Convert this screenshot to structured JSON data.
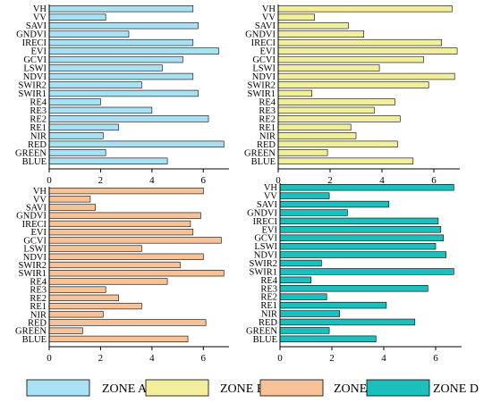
{
  "chart_data": [
    {
      "type": "bar",
      "orientation": "horizontal",
      "zone": "ZONE A",
      "color": "#a8e0f4",
      "categories": [
        "VH",
        "VV",
        "SAVI",
        "GNDVI",
        "IRECI",
        "EVI",
        "GCVI",
        "LSWI",
        "NDVI",
        "SWIR2",
        "SWIR1",
        "RE4",
        "RE3",
        "RE2",
        "RE1",
        "NIR",
        "RED",
        "GREEN",
        "BLUE"
      ],
      "values": [
        5.6,
        2.2,
        5.8,
        3.1,
        5.6,
        6.6,
        5.2,
        4.4,
        5.6,
        3.6,
        5.8,
        2.0,
        4.0,
        6.2,
        2.7,
        2.1,
        6.8,
        2.2,
        4.6
      ],
      "xlim": [
        0,
        7
      ],
      "xticks": [
        "0",
        "2",
        "4",
        "6"
      ],
      "grid": false
    },
    {
      "type": "bar",
      "orientation": "horizontal",
      "zone": "ZONE B",
      "color": "#f2ef9c",
      "categories": [
        "VH",
        "VV",
        "SAVI",
        "GNDVI",
        "IRECI",
        "EVI",
        "GCVI",
        "LSWI",
        "NDVI",
        "SWIR2",
        "SWIR1",
        "RE4",
        "RE3",
        "RE2",
        "RE1",
        "NIR",
        "RED",
        "GREEN",
        "BLUE"
      ],
      "values": [
        6.7,
        1.4,
        2.7,
        3.3,
        6.3,
        6.9,
        5.6,
        3.9,
        6.8,
        5.8,
        1.3,
        4.5,
        3.7,
        4.7,
        2.8,
        3.0,
        4.6,
        1.9,
        5.2
      ],
      "xlim": [
        0,
        7
      ],
      "xticks": [
        "0",
        "2",
        "4",
        "6"
      ],
      "grid": false
    },
    {
      "type": "bar",
      "orientation": "horizontal",
      "zone": "ZONE C",
      "color": "#f7c298",
      "categories": [
        "VH",
        "VV",
        "SAVI",
        "GNDVI",
        "IRECI",
        "EVI",
        "GCVI",
        "LSWI",
        "NDVI",
        "SWIR2",
        "SWIR1",
        "RE4",
        "RE3",
        "RE2",
        "RE1",
        "NIR",
        "RED",
        "GREEN",
        "BLUE"
      ],
      "values": [
        6.0,
        1.6,
        1.8,
        5.9,
        5.5,
        5.6,
        6.7,
        3.6,
        6.0,
        5.1,
        6.8,
        4.6,
        2.2,
        2.7,
        3.6,
        2.1,
        6.1,
        1.3,
        5.4
      ],
      "xlim": [
        0,
        7
      ],
      "xticks": [
        "0",
        "2",
        "4",
        "6"
      ],
      "grid": false
    },
    {
      "type": "bar",
      "orientation": "horizontal",
      "zone": "ZONE D",
      "color": "#1bbfbc",
      "categories": [
        "VH",
        "VV",
        "SAVI",
        "GNDVI",
        "IRECI",
        "EVI",
        "GCVI",
        "LSWI",
        "NDVI",
        "SWIR2",
        "SWIR1",
        "RE4",
        "RE3",
        "RE2",
        "RE1",
        "NIR",
        "RED",
        "GREEN",
        "BLUE"
      ],
      "values": [
        6.7,
        1.9,
        4.2,
        2.6,
        6.1,
        6.2,
        6.3,
        6.0,
        6.4,
        1.6,
        6.7,
        1.2,
        5.7,
        1.8,
        4.1,
        2.3,
        5.2,
        1.9,
        3.7
      ],
      "xlim": [
        0,
        7
      ],
      "xticks": [
        "0",
        "2",
        "4",
        "6"
      ],
      "grid": false
    }
  ],
  "legend": {
    "placement": "bottom",
    "items": [
      {
        "label": "ZONE A",
        "color": "#a8e0f4"
      },
      {
        "label": "ZONE B",
        "color": "#f2ef9c"
      },
      {
        "label": "ZONE C",
        "color": "#f7c298"
      },
      {
        "label": "ZONE D",
        "color": "#1bbfbc"
      }
    ]
  }
}
